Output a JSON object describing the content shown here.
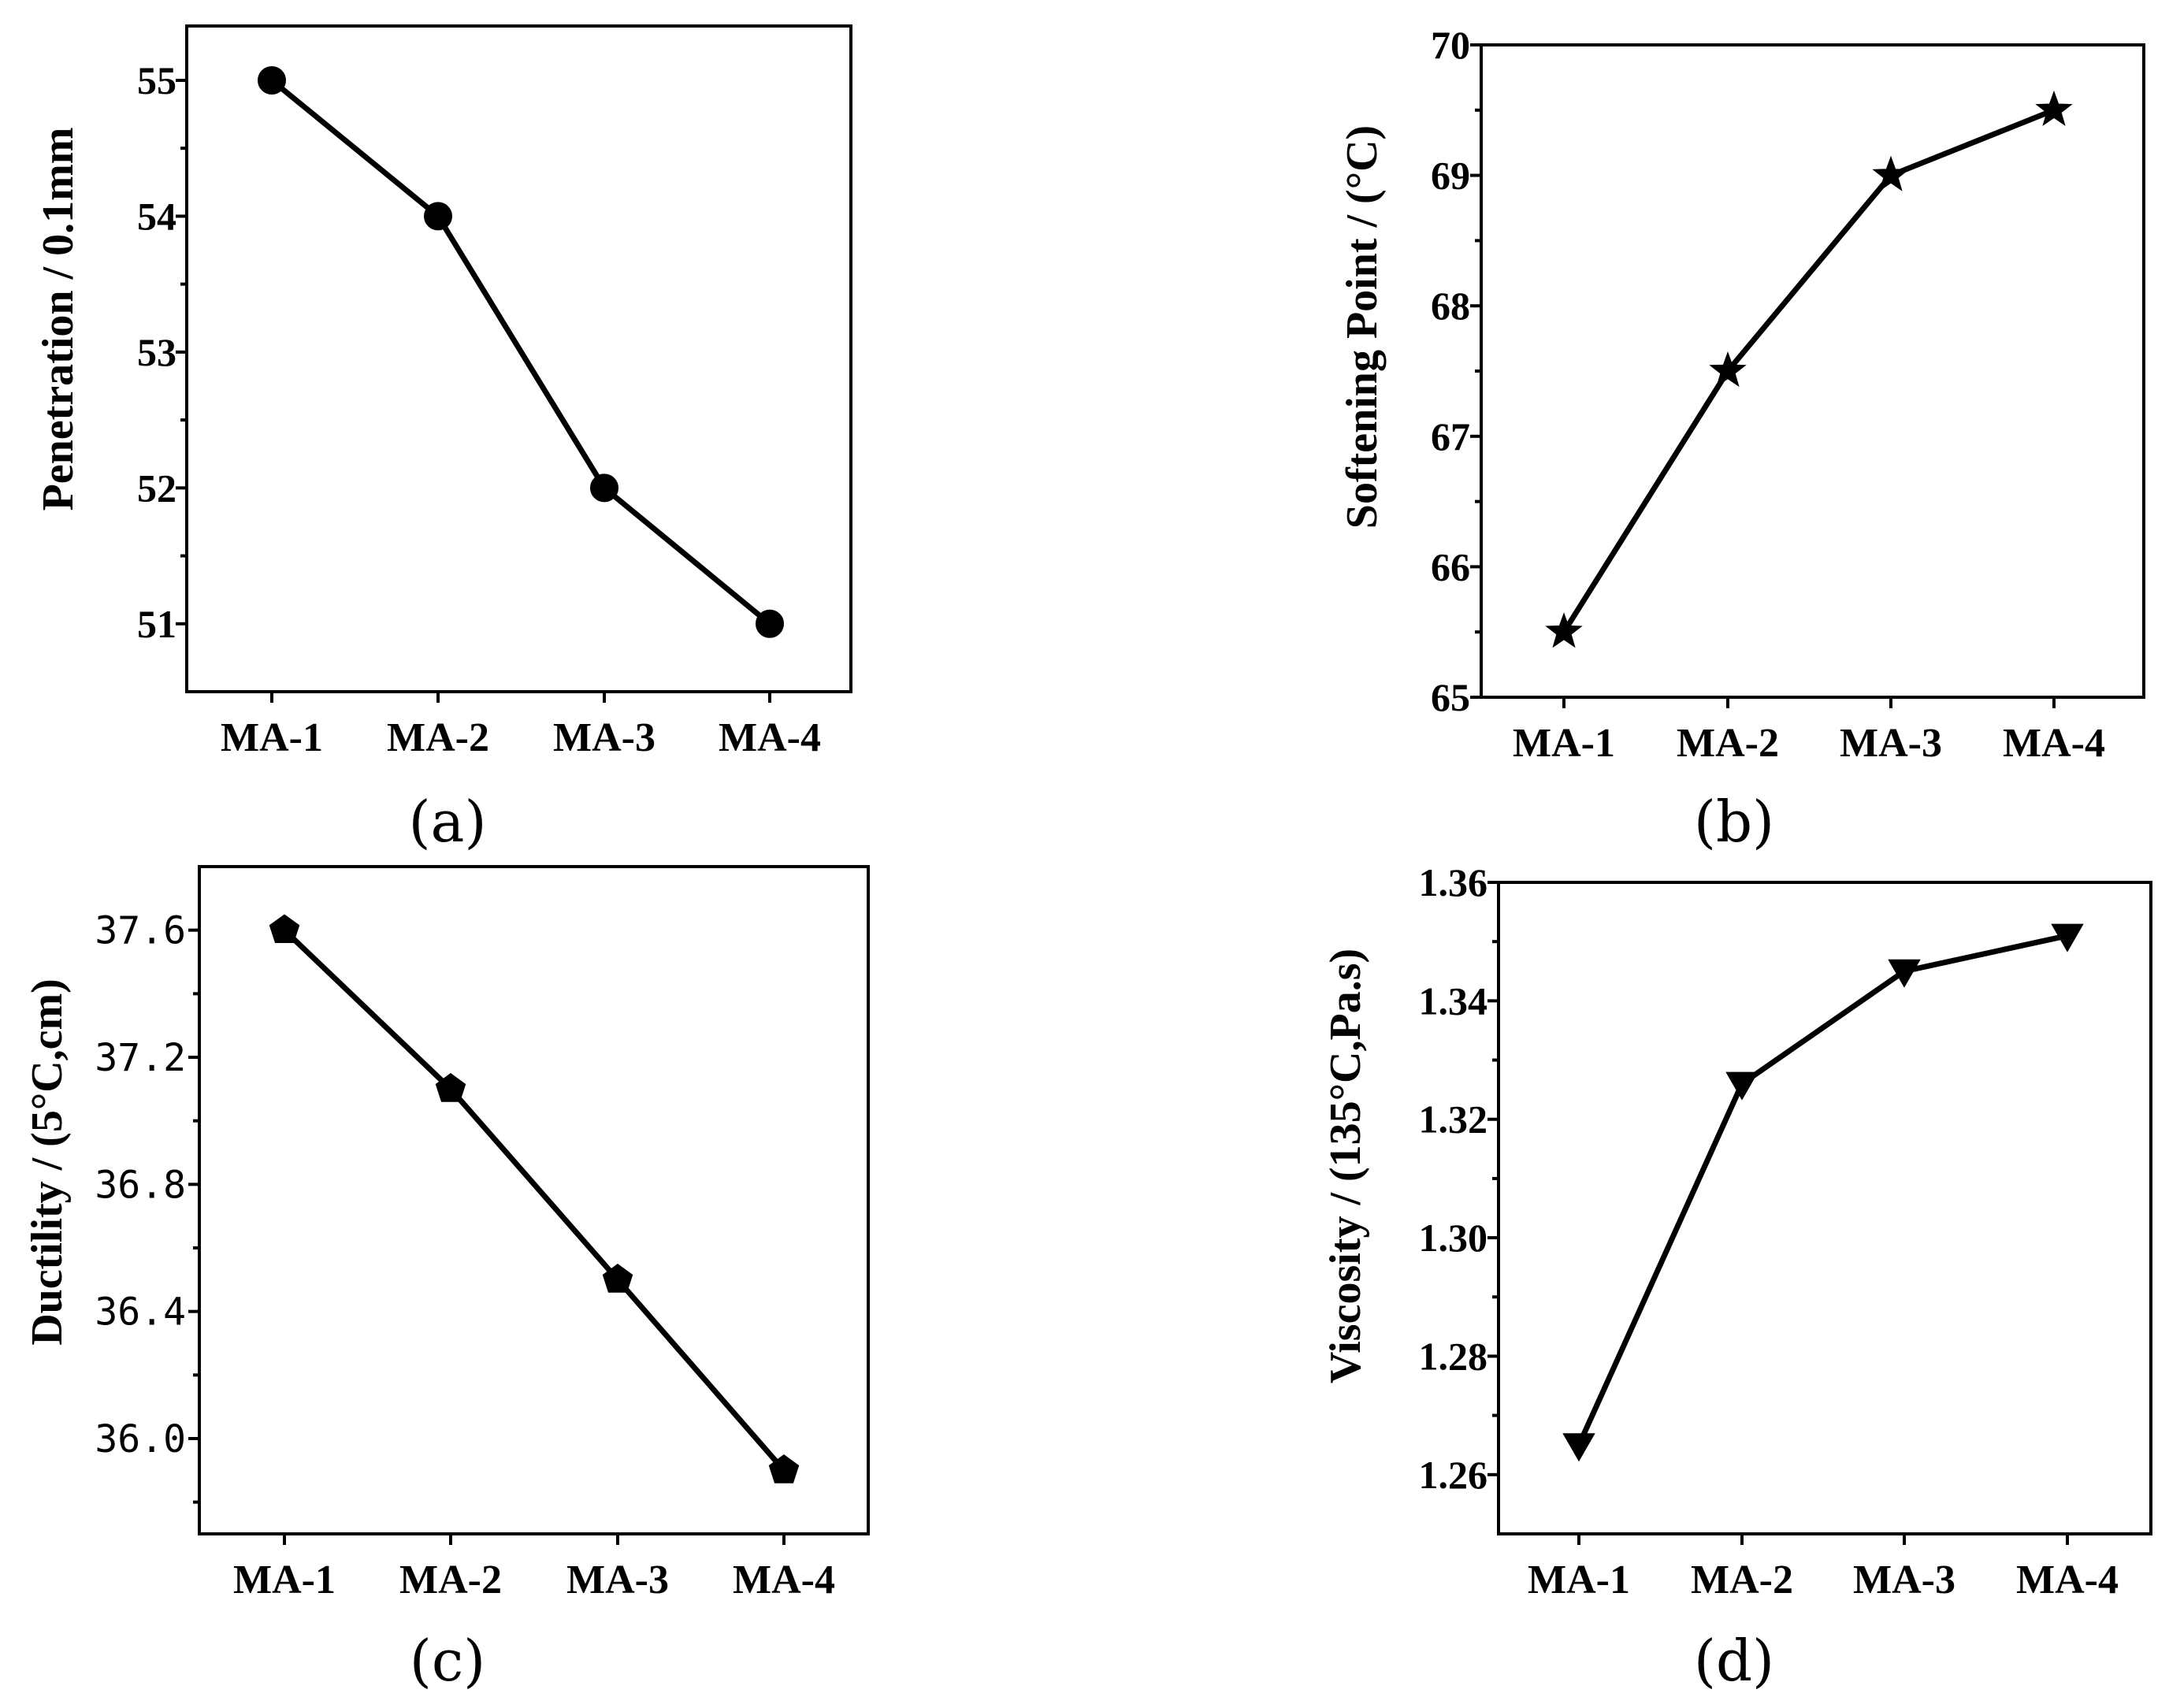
{
  "figure": {
    "panels": [
      "(a)",
      "(b)",
      "(c)",
      "(d)"
    ]
  },
  "chart_data": [
    {
      "type": "line",
      "panel": "(a)",
      "categories": [
        "MA-1",
        "MA-2",
        "MA-3",
        "MA-4"
      ],
      "series": [
        {
          "name": "Penetration",
          "marker": "circle",
          "values": [
            55,
            54,
            52,
            51
          ]
        }
      ],
      "ylabel": "Penetration / 0.1mm",
      "xlabel": "",
      "ylim": [
        50.5,
        55.4
      ],
      "yticks": [
        51,
        52,
        53,
        54,
        55
      ],
      "ytick_labels": [
        "51",
        "52",
        "53",
        "54",
        "55"
      ]
    },
    {
      "type": "line",
      "panel": "(b)",
      "categories": [
        "MA-1",
        "MA-2",
        "MA-3",
        "MA-4"
      ],
      "series": [
        {
          "name": "Softening Point",
          "marker": "star",
          "values": [
            65.5,
            67.5,
            69.0,
            69.5
          ]
        }
      ],
      "ylabel": "Softening Point / (°C)",
      "xlabel": "",
      "ylim": [
        65,
        70
      ],
      "yticks": [
        65,
        66,
        67,
        68,
        69,
        70
      ],
      "ytick_labels": [
        "65",
        "66",
        "67",
        "68",
        "69",
        "70"
      ]
    },
    {
      "type": "line",
      "panel": "(c)",
      "categories": [
        "MA-1",
        "MA-2",
        "MA-3",
        "MA-4"
      ],
      "series": [
        {
          "name": "Ductility",
          "marker": "pentagon",
          "values": [
            37.6,
            37.1,
            36.5,
            35.9
          ]
        }
      ],
      "ylabel": "Ductility / (5°C,cm)",
      "xlabel": "",
      "ylim": [
        35.7,
        37.8
      ],
      "yticks": [
        36.0,
        36.4,
        36.8,
        37.2,
        37.6
      ],
      "ytick_labels": [
        "36.0",
        "36.4",
        "36.8",
        "37.2",
        "37.6"
      ]
    },
    {
      "type": "line",
      "panel": "(d)",
      "categories": [
        "MA-1",
        "MA-2",
        "MA-3",
        "MA-4"
      ],
      "series": [
        {
          "name": "Viscosity",
          "marker": "triangle-down",
          "values": [
            1.265,
            1.326,
            1.345,
            1.351
          ]
        }
      ],
      "ylabel": "Viscosity / (135°C,Pa.s)",
      "xlabel": "",
      "ylim": [
        1.25,
        1.36
      ],
      "yticks": [
        1.26,
        1.28,
        1.3,
        1.32,
        1.34,
        1.36
      ],
      "ytick_labels": [
        "1.26",
        "1.28",
        "1.30",
        "1.32",
        "1.34",
        "1.36"
      ]
    }
  ]
}
